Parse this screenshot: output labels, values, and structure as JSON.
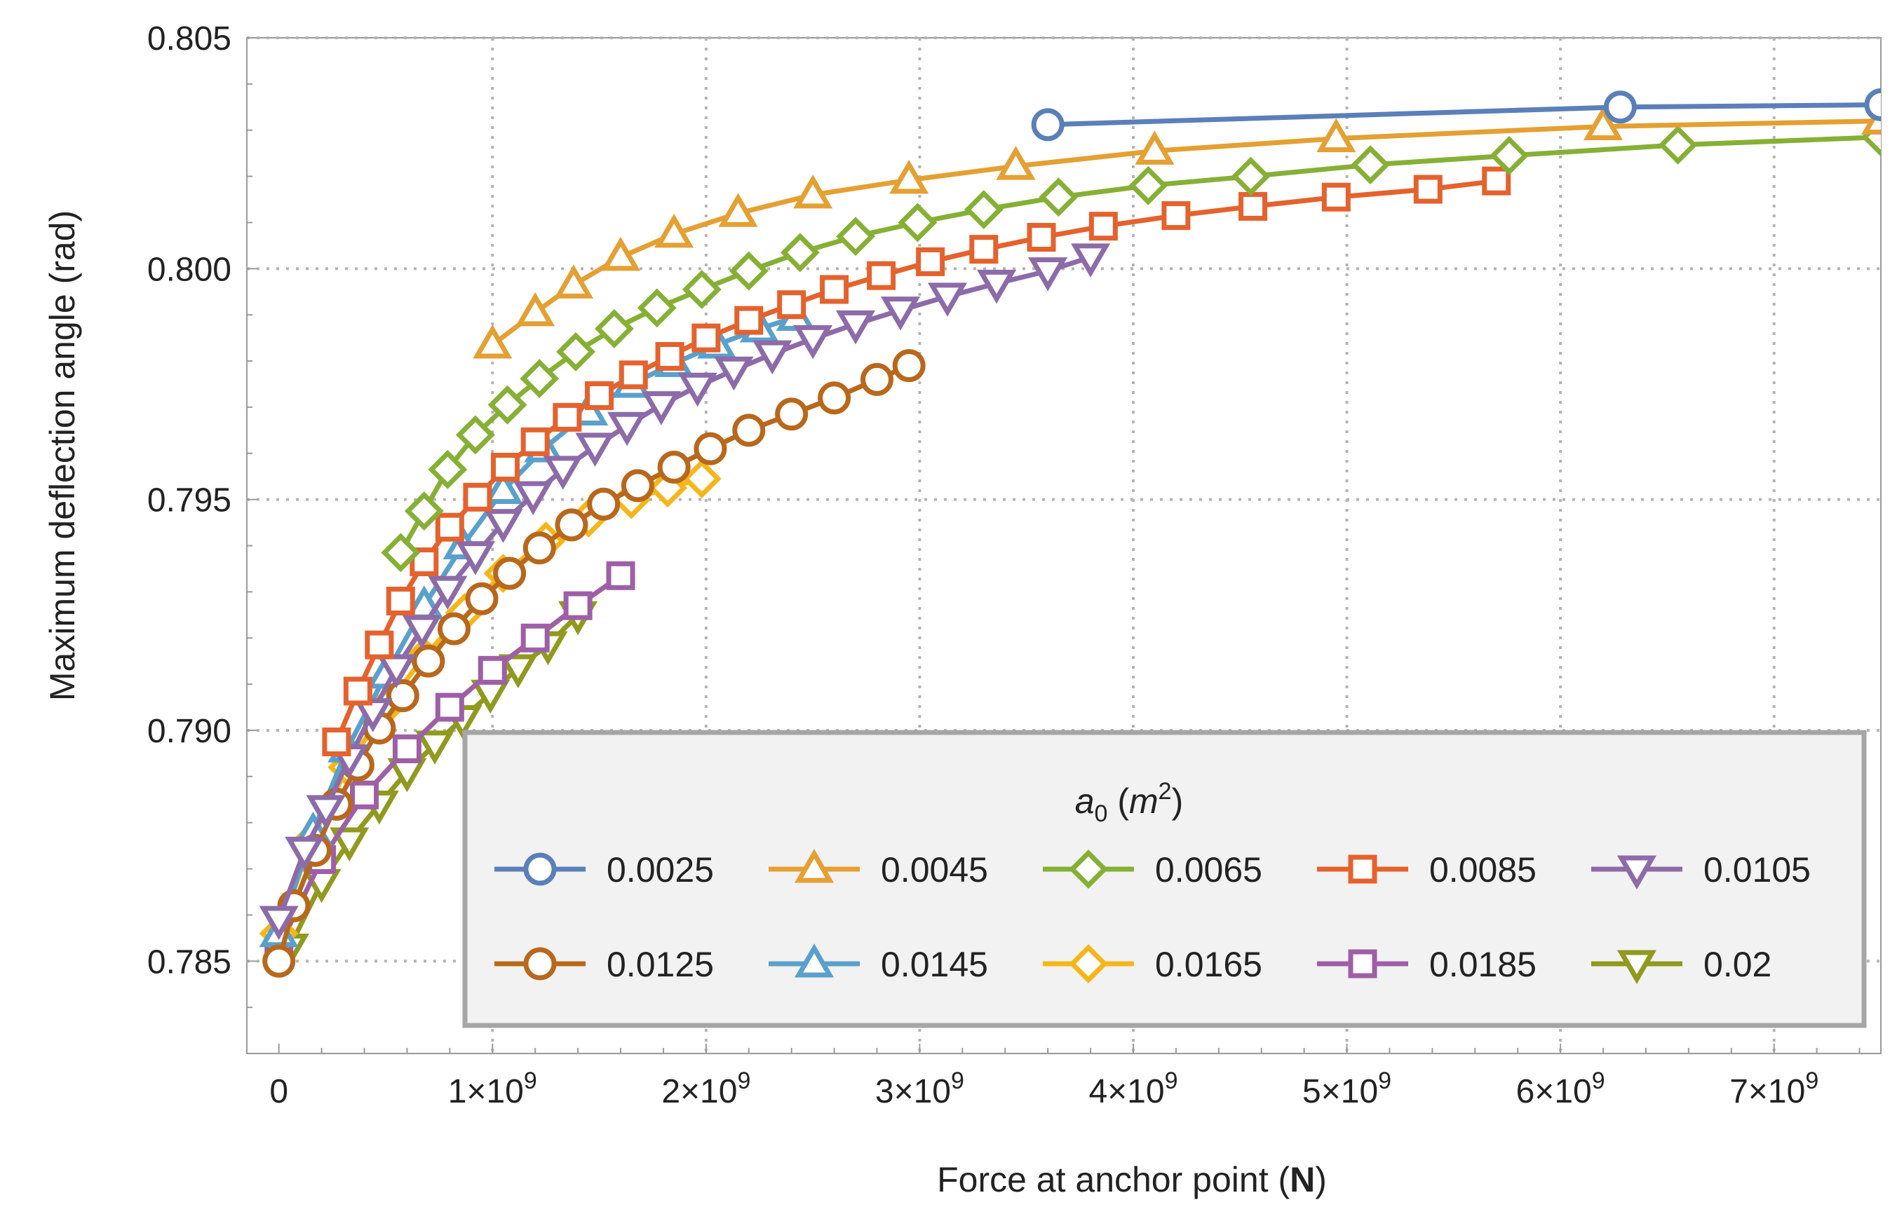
{
  "chart_data": {
    "type": "line",
    "title": "",
    "xlabel": "Force at anchor point",
    "xlabel_unit": "N",
    "ylabel": "Maximum deflection angle (rad)",
    "xlim": [
      -150000000,
      7500000000
    ],
    "ylim": [
      0.783,
      0.805
    ],
    "grid": true,
    "x_ticks": [
      {
        "value": 0,
        "label": "0",
        "exp": ""
      },
      {
        "value": 1000000000,
        "label": "1×10",
        "exp": "9"
      },
      {
        "value": 2000000000,
        "label": "2×10",
        "exp": "9"
      },
      {
        "value": 3000000000,
        "label": "3×10",
        "exp": "9"
      },
      {
        "value": 4000000000,
        "label": "4×10",
        "exp": "9"
      },
      {
        "value": 5000000000,
        "label": "5×10",
        "exp": "9"
      },
      {
        "value": 6000000000,
        "label": "6×10",
        "exp": "9"
      },
      {
        "value": 7000000000,
        "label": "7×10",
        "exp": "9"
      }
    ],
    "y_ticks": [
      {
        "value": 0.785,
        "label": "0.785"
      },
      {
        "value": 0.79,
        "label": "0.790"
      },
      {
        "value": 0.795,
        "label": "0.795"
      },
      {
        "value": 0.8,
        "label": "0.800"
      },
      {
        "value": 0.805,
        "label": "0.805"
      }
    ],
    "legend": {
      "title_var": "a",
      "title_sub": "0",
      "title_unit": "m",
      "title_unit_exp": "2",
      "placement": "bottom-right"
    },
    "series": [
      {
        "name": "0.0025",
        "color": "#5b7fb8",
        "marker": "circle",
        "x": [
          3600000000.0,
          6280000000.0,
          7500000000.0
        ],
        "y": [
          0.80312,
          0.8035,
          0.80355
        ]
      },
      {
        "name": "0.0045",
        "color": "#e4a032",
        "marker": "triangle-up",
        "x": [
          1000000000.0,
          1200000000.0,
          1380000000.0,
          1600000000.0,
          1850000000.0,
          2150000000.0,
          2500000000.0,
          2950000000.0,
          3450000000.0,
          4100000000.0,
          4950000000.0,
          6200000000.0,
          7500000000.0
        ],
        "y": [
          0.79835,
          0.79905,
          0.79965,
          0.80025,
          0.80075,
          0.8012,
          0.8016,
          0.80192,
          0.80222,
          0.80255,
          0.80282,
          0.80308,
          0.8032
        ]
      },
      {
        "name": "0.0065",
        "color": "#86b035",
        "marker": "diamond",
        "x": [
          570000000.0,
          680000000.0,
          790000000.0,
          920000000.0,
          1070000000.0,
          1220000000.0,
          1390000000.0,
          1570000000.0,
          1770000000.0,
          1980000000.0,
          2200000000.0,
          2440000000.0,
          2700000000.0,
          2990000000.0,
          3300000000.0,
          3650000000.0,
          4070000000.0,
          4550000000.0,
          5110000000.0,
          5760000000.0,
          6550000000.0,
          7500000000.0
        ],
        "y": [
          0.79385,
          0.79475,
          0.79565,
          0.7964,
          0.79705,
          0.79762,
          0.7982,
          0.7987,
          0.79915,
          0.79955,
          0.79995,
          0.80035,
          0.8007,
          0.801,
          0.80128,
          0.80155,
          0.8018,
          0.802,
          0.80225,
          0.80245,
          0.80268,
          0.80285
        ]
      },
      {
        "name": "0.0085",
        "color": "#e4622d",
        "marker": "square",
        "x": [
          270000000.0,
          370000000.0,
          470000000.0,
          570000000.0,
          680000000.0,
          800000000.0,
          930000000.0,
          1060000000.0,
          1200000000.0,
          1350000000.0,
          1500000000.0,
          1660000000.0,
          1830000000.0,
          2000000000.0,
          2200000000.0,
          2400000000.0,
          2600000000.0,
          2820000000.0,
          3050000000.0,
          3300000000.0,
          3570000000.0,
          3860000000.0,
          4200000000.0,
          4560000000.0,
          4950000000.0,
          5380000000.0,
          5700000000.0
        ],
        "y": [
          0.78975,
          0.79085,
          0.79185,
          0.7928,
          0.79365,
          0.7944,
          0.79505,
          0.7957,
          0.79625,
          0.79678,
          0.79725,
          0.7977,
          0.7981,
          0.7985,
          0.79888,
          0.79922,
          0.79955,
          0.79985,
          0.80015,
          0.80042,
          0.80068,
          0.80092,
          0.80115,
          0.80135,
          0.80155,
          0.80172,
          0.8019
        ]
      },
      {
        "name": "0.0105",
        "color": "#8c6ba8",
        "marker": "triangle-down",
        "x": [
          0.0,
          120000000.0,
          220000000.0,
          330000000.0,
          440000000.0,
          550000000.0,
          670000000.0,
          790000000.0,
          920000000.0,
          1050000000.0,
          1190000000.0,
          1330000000.0,
          1480000000.0,
          1630000000.0,
          1790000000.0,
          1960000000.0,
          2130000000.0,
          2310000000.0,
          2500000000.0,
          2700000000.0,
          2910000000.0,
          3130000000.0,
          3360000000.0,
          3600000000.0,
          3800000000.0
        ],
        "y": [
          0.7859,
          0.7874,
          0.7883,
          0.7894,
          0.7904,
          0.79135,
          0.7922,
          0.79305,
          0.7938,
          0.7945,
          0.7951,
          0.79565,
          0.79615,
          0.7966,
          0.79705,
          0.79745,
          0.7978,
          0.79815,
          0.79848,
          0.7988,
          0.7991,
          0.7994,
          0.79968,
          0.79995,
          0.80025
        ]
      },
      {
        "name": "0.0125",
        "color": "#b8681c",
        "marker": "circle",
        "x": [
          0.0,
          70000000.0,
          170000000.0,
          270000000.0,
          370000000.0,
          470000000.0,
          580000000.0,
          700000000.0,
          820000000.0,
          950000000.0,
          1080000000.0,
          1220000000.0,
          1370000000.0,
          1520000000.0,
          1680000000.0,
          1850000000.0,
          2020000000.0,
          2200000000.0,
          2400000000.0,
          2600000000.0,
          2800000000.0,
          2950000000.0
        ],
        "y": [
          0.785,
          0.7862,
          0.7874,
          0.7884,
          0.78925,
          0.79005,
          0.79075,
          0.7915,
          0.7922,
          0.79285,
          0.7934,
          0.79395,
          0.79445,
          0.7949,
          0.7953,
          0.7957,
          0.7961,
          0.7965,
          0.79685,
          0.7972,
          0.7976,
          0.7979
        ]
      },
      {
        "name": "0.0145",
        "color": "#5aa0cc",
        "marker": "triangle-up",
        "x": [
          0.0,
          160000000.0,
          320000000.0,
          500000000.0,
          680000000.0,
          860000000.0,
          1050000000.0,
          1240000000.0,
          1450000000.0,
          1650000000.0,
          1850000000.0,
          2050000000.0,
          2250000000.0,
          2420000000.0
        ],
        "y": [
          0.7856,
          0.7878,
          0.7896,
          0.7912,
          0.7927,
          0.794,
          0.7952,
          0.7961,
          0.7969,
          0.7975,
          0.79795,
          0.79835,
          0.7987,
          0.79895
        ]
      },
      {
        "name": "0.0165",
        "color": "#f4b71a",
        "marker": "diamond",
        "x": [
          0.0,
          150000000.0,
          320000000.0,
          500000000.0,
          680000000.0,
          870000000.0,
          1050000000.0,
          1250000000.0,
          1450000000.0,
          1650000000.0,
          1820000000.0,
          1980000000.0
        ],
        "y": [
          0.7856,
          0.7876,
          0.7892,
          0.7905,
          0.7916,
          0.79255,
          0.7934,
          0.7941,
          0.7946,
          0.795,
          0.79525,
          0.79545
        ]
      },
      {
        "name": "0.0185",
        "color": "#9e5fa6",
        "marker": "square",
        "x": [
          0.0,
          200000000.0,
          400000000.0,
          600000000.0,
          800000000.0,
          1000000000.0,
          1200000000.0,
          1400000000.0,
          1600000000.0
        ],
        "y": [
          0.7853,
          0.7872,
          0.7886,
          0.7896,
          0.7905,
          0.7913,
          0.792,
          0.7927,
          0.79335
        ]
      },
      {
        "name": "0.02",
        "color": "#8f9a1e",
        "marker": "triangle-down",
        "x": [
          50000000.0,
          200000000.0,
          330000000.0,
          470000000.0,
          600000000.0,
          730000000.0,
          860000000.0,
          990000000.0,
          1120000000.0,
          1260000000.0,
          1400000000.0
        ],
        "y": [
          0.7853,
          0.7867,
          0.7876,
          0.7884,
          0.7891,
          0.7897,
          0.79025,
          0.7908,
          0.79135,
          0.79185,
          0.7925
        ]
      }
    ]
  }
}
